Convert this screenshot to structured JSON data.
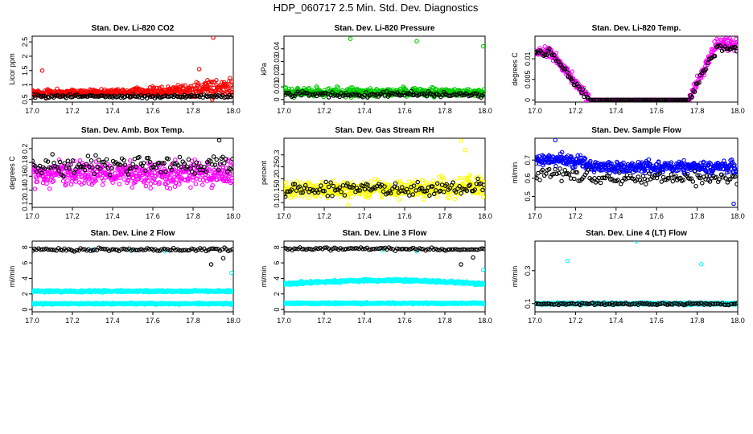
{
  "figure": {
    "title": "HDP_060717  2.5 Min. Std. Dev. Diagnostics"
  },
  "chart_data": [
    {
      "type": "scatter",
      "title": "Stan. Dev. Li-820 CO2",
      "ylabel": "Licor ppm",
      "xlim": [
        17.0,
        18.0
      ],
      "ylim": [
        0.4,
        2.7
      ],
      "yticks": [
        0.5,
        1.0,
        1.5,
        2.0,
        2.5
      ],
      "xticks": [
        17.0,
        17.2,
        17.4,
        17.6,
        17.8,
        18.0
      ],
      "series": [
        {
          "name": "red",
          "color": "#ff0000",
          "n": 480,
          "curve": "flat",
          "base": 0.72,
          "spread": 0.1,
          "end_base": 0.95,
          "end_spread": 0.35,
          "outliers": [
            [
              17.9,
              2.65
            ],
            [
              17.05,
              1.5
            ],
            [
              17.83,
              1.55
            ]
          ]
        },
        {
          "name": "black",
          "color": "#000000",
          "n": 130,
          "curve": "flat",
          "base": 0.6,
          "spread": 0.05,
          "end_base": 0.6,
          "end_spread": 0.05,
          "outliers": []
        }
      ]
    },
    {
      "type": "scatter",
      "title": "Stan. Dev. Li-820 Pressure",
      "ylabel": "kPa",
      "xlim": [
        17.0,
        18.0
      ],
      "ylim": [
        -0.002,
        0.05
      ],
      "yticks": [
        0.0,
        0.01,
        0.02,
        0.03,
        0.04
      ],
      "xticks": [
        17.0,
        17.2,
        17.4,
        17.6,
        17.8,
        18.0
      ],
      "series": [
        {
          "name": "green",
          "color": "#00cc00",
          "n": 480,
          "curve": "flat",
          "base": 0.006,
          "spread": 0.003,
          "end_base": 0.005,
          "end_spread": 0.003,
          "outliers": [
            [
              17.33,
              0.048
            ],
            [
              17.66,
              0.046
            ],
            [
              17.99,
              0.042
            ]
          ]
        },
        {
          "name": "black",
          "color": "#000000",
          "n": 130,
          "curve": "flat",
          "base": 0.004,
          "spread": 0.002,
          "end_base": 0.004,
          "end_spread": 0.002,
          "outliers": []
        }
      ]
    },
    {
      "type": "scatter",
      "title": "Stan. Dev. Li-820 Temp.",
      "ylabel": "degrees C",
      "xlim": [
        17.0,
        18.0
      ],
      "ylim": [
        -0.0005,
        0.0155
      ],
      "yticks": [
        0.0,
        0.005,
        0.01
      ],
      "xticks": [
        17.0,
        17.2,
        17.4,
        17.6,
        17.8,
        18.0
      ],
      "series": [
        {
          "name": "magenta",
          "color": "#ff00ff",
          "n": 480,
          "curve": "bathtub",
          "base": 0.0115,
          "spread": 0.0012,
          "end_base": 0.0135,
          "end_spread": 0.0015,
          "outliers": []
        },
        {
          "name": "black",
          "color": "#000000",
          "n": 140,
          "curve": "bathtub",
          "base": 0.0113,
          "spread": 0.0008,
          "end_base": 0.0125,
          "end_spread": 0.001,
          "outliers": []
        }
      ]
    },
    {
      "type": "scatter",
      "title": "Stan. Dev. Amb. Box Temp.",
      "ylabel": "degrees C",
      "xlim": [
        17.0,
        18.0
      ],
      "ylim": [
        0.115,
        0.215
      ],
      "yticks": [
        0.12,
        0.14,
        0.16,
        0.18,
        0.2
      ],
      "xticks": [
        17.0,
        17.2,
        17.4,
        17.6,
        17.8,
        18.0
      ],
      "series": [
        {
          "name": "magenta",
          "color": "#ff00ff",
          "n": 480,
          "curve": "flat",
          "base": 0.163,
          "spread": 0.016,
          "end_base": 0.163,
          "end_spread": 0.016,
          "outliers": []
        },
        {
          "name": "black",
          "color": "#000000",
          "n": 130,
          "curve": "flat",
          "base": 0.175,
          "spread": 0.013,
          "end_base": 0.178,
          "end_spread": 0.015,
          "outliers": [
            [
              17.93,
              0.212
            ]
          ]
        }
      ]
    },
    {
      "type": "scatter",
      "title": "Stan. Dev. Gas Stream RH",
      "ylabel": "percent",
      "xlim": [
        17.0,
        18.0
      ],
      "ylim": [
        0.08,
        0.37
      ],
      "yticks": [
        0.1,
        0.15,
        0.2,
        0.25,
        0.3
      ],
      "xticks": [
        17.0,
        17.2,
        17.4,
        17.6,
        17.8,
        18.0
      ],
      "series": [
        {
          "name": "yellow",
          "color": "#ffff00",
          "n": 480,
          "curve": "flat",
          "base": 0.155,
          "spread": 0.028,
          "end_base": 0.17,
          "end_spread": 0.045,
          "outliers": [
            [
              17.88,
              0.36
            ],
            [
              17.32,
              0.09
            ],
            [
              17.9,
              0.32
            ]
          ]
        },
        {
          "name": "black",
          "color": "#000000",
          "n": 130,
          "curve": "flat",
          "base": 0.155,
          "spread": 0.025,
          "end_base": 0.17,
          "end_spread": 0.03,
          "outliers": []
        }
      ]
    },
    {
      "type": "scatter",
      "title": "Stan. Dev. Sample Flow",
      "ylabel": "ml/min",
      "xlim": [
        17.0,
        18.0
      ],
      "ylim": [
        0.44,
        0.82
      ],
      "yticks": [
        0.5,
        0.6,
        0.7
      ],
      "xticks": [
        17.0,
        17.2,
        17.4,
        17.6,
        17.8,
        18.0
      ],
      "series": [
        {
          "name": "blue",
          "color": "#0000ff",
          "n": 480,
          "curve": "dip",
          "base": 0.7,
          "spread": 0.03,
          "end_base": 0.66,
          "end_spread": 0.035,
          "outliers": [
            [
              17.1,
              0.81
            ],
            [
              17.98,
              0.46
            ]
          ]
        },
        {
          "name": "black",
          "color": "#000000",
          "n": 130,
          "curve": "dip",
          "base": 0.62,
          "spread": 0.03,
          "end_base": 0.6,
          "end_spread": 0.03,
          "outliers": []
        }
      ]
    },
    {
      "type": "scatter",
      "title": "Stan. Dev. Line 2 Flow",
      "ylabel": "ml/min",
      "xlim": [
        17.0,
        18.0
      ],
      "ylim": [
        -0.3,
        8.8
      ],
      "yticks": [
        0,
        2,
        4,
        6,
        8
      ],
      "xticks": [
        17.0,
        17.2,
        17.4,
        17.6,
        17.8,
        18.0
      ],
      "series": [
        {
          "name": "cyan-upper",
          "color": "#00ffff",
          "n": 480,
          "curve": "flat",
          "base": 2.35,
          "spread": 0.12,
          "end_base": 2.35,
          "end_spread": 0.12,
          "outliers": [
            [
              17.99,
              4.7
            ],
            [
              17.3,
              7.7
            ],
            [
              17.49,
              7.6
            ],
            [
              17.66,
              7.5
            ]
          ]
        },
        {
          "name": "cyan-lower",
          "color": "#00ffff",
          "n": 480,
          "curve": "flat",
          "base": 0.75,
          "spread": 0.1,
          "end_base": 0.75,
          "end_spread": 0.1,
          "outliers": []
        },
        {
          "name": "black",
          "color": "#000000",
          "n": 100,
          "curve": "flat",
          "base": 7.7,
          "spread": 0.18,
          "end_base": 7.7,
          "end_spread": 0.18,
          "outliers": [
            [
              17.89,
              5.8
            ],
            [
              17.95,
              6.6
            ]
          ]
        }
      ]
    },
    {
      "type": "scatter",
      "title": "Stan. Dev. Line 3 Flow",
      "ylabel": "ml/min",
      "xlim": [
        17.0,
        18.0
      ],
      "ylim": [
        -0.3,
        8.8
      ],
      "yticks": [
        0,
        2,
        4,
        6,
        8
      ],
      "xticks": [
        17.0,
        17.2,
        17.4,
        17.6,
        17.8,
        18.0
      ],
      "series": [
        {
          "name": "cyan-upper",
          "color": "#00ffff",
          "n": 480,
          "curve": "hump",
          "base": 3.3,
          "spread": 0.15,
          "end_base": 3.2,
          "end_spread": 0.15,
          "outliers": [
            [
              17.99,
              5.1
            ],
            [
              17.49,
              7.6
            ],
            [
              17.66,
              7.5
            ]
          ]
        },
        {
          "name": "cyan-lower",
          "color": "#00ffff",
          "n": 480,
          "curve": "flat",
          "base": 0.8,
          "spread": 0.1,
          "end_base": 0.8,
          "end_spread": 0.1,
          "outliers": []
        },
        {
          "name": "black",
          "color": "#000000",
          "n": 100,
          "curve": "flat",
          "base": 7.8,
          "spread": 0.18,
          "end_base": 7.7,
          "end_spread": 0.18,
          "outliers": [
            [
              17.88,
              5.8
            ],
            [
              17.94,
              6.7
            ]
          ]
        }
      ]
    },
    {
      "type": "scatter",
      "title": "Stan. Dev. Line 4 (LT) Flow",
      "ylabel": "ml/min",
      "xlim": [
        17.0,
        18.0
      ],
      "ylim": [
        0.05,
        0.48
      ],
      "yticks": [
        0.1,
        0.3
      ],
      "xticks": [
        17.0,
        17.2,
        17.4,
        17.6,
        17.8,
        18.0
      ],
      "series": [
        {
          "name": "cyan",
          "color": "#00ffff",
          "n": 480,
          "curve": "flat",
          "base": 0.1,
          "spread": 0.006,
          "end_base": 0.1,
          "end_spread": 0.006,
          "outliers": [
            [
              17.16,
              0.36
            ],
            [
              17.5,
              0.48
            ],
            [
              17.82,
              0.34
            ]
          ]
        },
        {
          "name": "black",
          "color": "#000000",
          "n": 130,
          "curve": "flat",
          "base": 0.098,
          "spread": 0.006,
          "end_base": 0.098,
          "end_spread": 0.006,
          "outliers": []
        }
      ]
    }
  ]
}
